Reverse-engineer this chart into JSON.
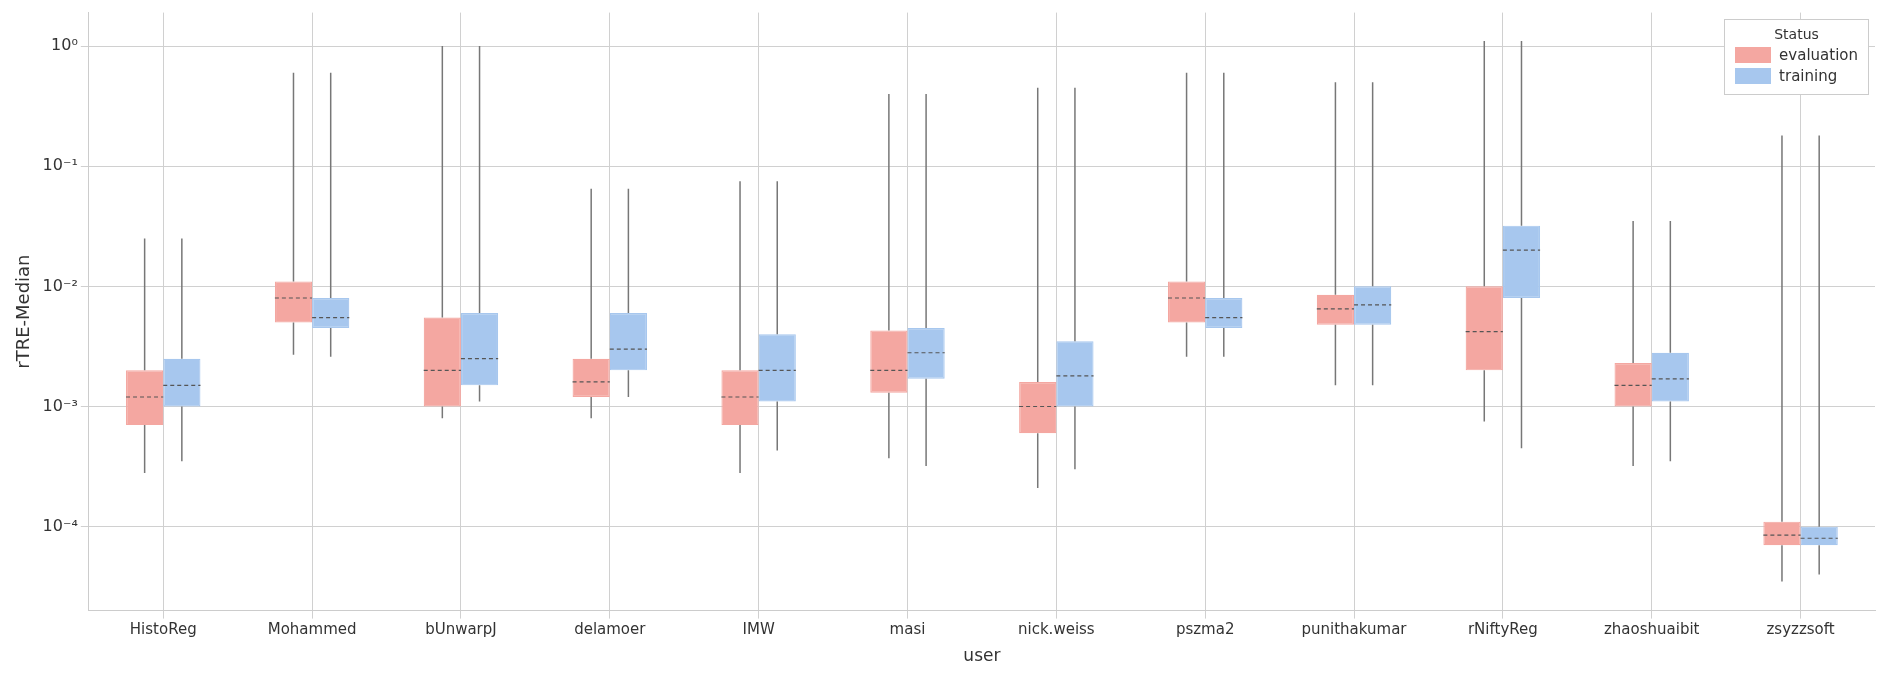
{
  "chart_data": {
    "type": "box",
    "xlabel": "user",
    "ylabel": "rTRE-Median",
    "legend_title": "Status",
    "legend": "top right",
    "grid": true,
    "log": "y",
    "categories": [
      "HistoReg",
      "Mohammed",
      "bUnwarpJ",
      "delamoer",
      "IMW",
      "masi",
      "nick.weiss",
      "pszma2",
      "punithakumar",
      "rNiftyReg",
      "zhaoshuaibit",
      "zsyzzsoft"
    ],
    "ylim": [
      2e-05,
      1.9
    ],
    "yticks": [
      {
        "value": 0.0001,
        "label": "10⁻⁴"
      },
      {
        "value": 0.001,
        "label": "10⁻³"
      },
      {
        "value": 0.01,
        "label": "10⁻²"
      },
      {
        "value": 0.1,
        "label": "10⁻¹"
      },
      {
        "value": 1,
        "label": "10⁰"
      }
    ],
    "series": [
      {
        "name": "evaluation",
        "color": "#f4a7a1",
        "boxes": [
          {
            "low": 0.00028,
            "q1": 0.0007,
            "median": 0.0012,
            "q3": 0.002,
            "high": 0.025
          },
          {
            "low": 0.0027,
            "q1": 0.005,
            "median": 0.008,
            "q3": 0.011,
            "high": 0.6
          },
          {
            "low": 0.0008,
            "q1": 0.001,
            "median": 0.002,
            "q3": 0.0055,
            "high": 1.0
          },
          {
            "low": 0.0008,
            "q1": 0.0012,
            "median": 0.0016,
            "q3": 0.0025,
            "high": 0.065
          },
          {
            "low": 0.00028,
            "q1": 0.0007,
            "median": 0.0012,
            "q3": 0.002,
            "high": 0.075
          },
          {
            "low": 0.00037,
            "q1": 0.0013,
            "median": 0.002,
            "q3": 0.0043,
            "high": 0.4
          },
          {
            "low": 0.00021,
            "q1": 0.0006,
            "median": 0.001,
            "q3": 0.0016,
            "high": 0.45
          },
          {
            "low": 0.0026,
            "q1": 0.005,
            "median": 0.008,
            "q3": 0.011,
            "high": 0.6
          },
          {
            "low": 0.0015,
            "q1": 0.0048,
            "median": 0.0065,
            "q3": 0.0085,
            "high": 0.5
          },
          {
            "low": 0.00075,
            "q1": 0.002,
            "median": 0.0042,
            "q3": 0.01,
            "high": 1.1
          },
          {
            "low": 0.00032,
            "q1": 0.001,
            "median": 0.0015,
            "q3": 0.0023,
            "high": 0.035
          },
          {
            "low": 3.5e-05,
            "q1": 7e-05,
            "median": 8.5e-05,
            "q3": 0.00011,
            "high": 0.18
          }
        ]
      },
      {
        "name": "training",
        "color": "#a7c7ee",
        "boxes": [
          {
            "low": 0.00035,
            "q1": 0.001,
            "median": 0.0015,
            "q3": 0.0025,
            "high": 0.025
          },
          {
            "low": 0.0026,
            "q1": 0.0045,
            "median": 0.0055,
            "q3": 0.008,
            "high": 0.6
          },
          {
            "low": 0.0011,
            "q1": 0.0015,
            "median": 0.0025,
            "q3": 0.006,
            "high": 1.0
          },
          {
            "low": 0.0012,
            "q1": 0.002,
            "median": 0.003,
            "q3": 0.006,
            "high": 0.065
          },
          {
            "low": 0.00043,
            "q1": 0.0011,
            "median": 0.002,
            "q3": 0.004,
            "high": 0.075
          },
          {
            "low": 0.00032,
            "q1": 0.0017,
            "median": 0.0028,
            "q3": 0.0045,
            "high": 0.4
          },
          {
            "low": 0.0003,
            "q1": 0.001,
            "median": 0.0018,
            "q3": 0.0035,
            "high": 0.45
          },
          {
            "low": 0.0026,
            "q1": 0.0045,
            "median": 0.0055,
            "q3": 0.008,
            "high": 0.6
          },
          {
            "low": 0.0015,
            "q1": 0.0048,
            "median": 0.007,
            "q3": 0.01,
            "high": 0.5
          },
          {
            "low": 0.00045,
            "q1": 0.008,
            "median": 0.02,
            "q3": 0.032,
            "high": 1.1
          },
          {
            "low": 0.00035,
            "q1": 0.0011,
            "median": 0.0017,
            "q3": 0.0028,
            "high": 0.035
          },
          {
            "low": 4e-05,
            "q1": 7e-05,
            "median": 8e-05,
            "q3": 0.0001,
            "high": 0.18
          }
        ]
      }
    ]
  }
}
